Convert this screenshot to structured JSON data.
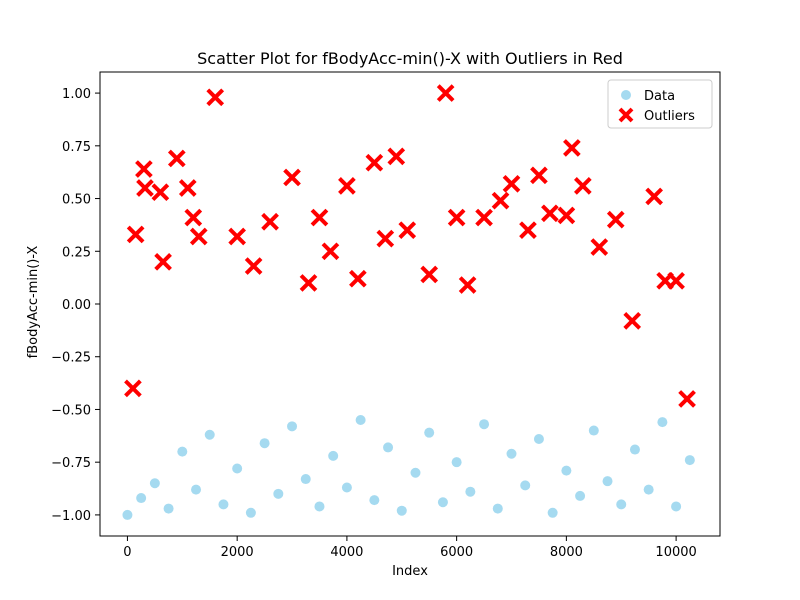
{
  "chart_data": {
    "type": "scatter",
    "title": "Scatter Plot for fBodyAcc-min()-X with Outliers in Red",
    "xlabel": "Index",
    "ylabel": "fBodyAcc-min()-X",
    "xlim": [
      -500,
      10800
    ],
    "ylim": [
      -1.1,
      1.1
    ],
    "xticks": [
      0,
      2000,
      4000,
      6000,
      8000,
      10000
    ],
    "yticks": [
      -1.0,
      -0.75,
      -0.5,
      -0.25,
      0.0,
      0.25,
      0.5,
      0.75,
      1.0
    ],
    "xtick_labels": [
      "0",
      "2000",
      "4000",
      "6000",
      "8000",
      "10000"
    ],
    "ytick_labels": [
      "−1.00",
      "−0.75",
      "−0.50",
      "−0.25",
      "0.00",
      "0.25",
      "0.50",
      "0.75",
      "1.00"
    ],
    "legend_position": "top-right",
    "series": [
      {
        "name": "Data",
        "marker": "circle",
        "color": "#87CEEB",
        "x": [
          0,
          250,
          500,
          750,
          1000,
          1250,
          1500,
          1750,
          2000,
          2250,
          2500,
          2750,
          3000,
          3250,
          3500,
          3750,
          4000,
          4250,
          4500,
          4750,
          5000,
          5250,
          5500,
          5750,
          6000,
          6250,
          6500,
          6750,
          7000,
          7250,
          7500,
          7750,
          8000,
          8250,
          8500,
          8750,
          9000,
          9250,
          9500,
          9750,
          10000,
          10250
        ],
        "y": [
          -1.0,
          -0.92,
          -0.85,
          -0.97,
          -0.7,
          -0.88,
          -0.62,
          -0.95,
          -0.78,
          -0.99,
          -0.66,
          -0.9,
          -0.58,
          -0.83,
          -0.96,
          -0.72,
          -0.87,
          -0.55,
          -0.93,
          -0.68,
          -0.98,
          -0.8,
          -0.61,
          -0.94,
          -0.75,
          -0.89,
          -0.57,
          -0.97,
          -0.71,
          -0.86,
          -0.64,
          -0.99,
          -0.79,
          -0.91,
          -0.6,
          -0.84,
          -0.95,
          -0.69,
          -0.88,
          -0.56,
          -0.96,
          -0.74
        ]
      },
      {
        "name": "Outliers",
        "marker": "x",
        "color": "#FF0000",
        "x": [
          100,
          150,
          300,
          320,
          600,
          650,
          900,
          1100,
          1200,
          1300,
          1600,
          2000,
          2300,
          2600,
          3000,
          3300,
          3500,
          3700,
          4000,
          4200,
          4500,
          4700,
          4900,
          5100,
          5500,
          5800,
          6000,
          6200,
          6500,
          6800,
          7000,
          7300,
          7500,
          7700,
          8000,
          8100,
          8300,
          8600,
          8900,
          9200,
          9600,
          9800,
          10000,
          10200
        ],
        "y": [
          -0.4,
          0.33,
          0.64,
          0.55,
          0.53,
          0.2,
          0.69,
          0.55,
          0.41,
          0.32,
          0.98,
          0.32,
          0.18,
          0.39,
          0.6,
          0.1,
          0.41,
          0.25,
          0.56,
          0.12,
          0.67,
          0.31,
          0.7,
          0.35,
          0.14,
          1.0,
          0.41,
          0.09,
          0.41,
          0.49,
          0.57,
          0.35,
          0.61,
          0.43,
          0.42,
          0.74,
          0.56,
          0.27,
          0.4,
          -0.08,
          0.51,
          0.11,
          0.11,
          -0.45
        ]
      }
    ]
  }
}
